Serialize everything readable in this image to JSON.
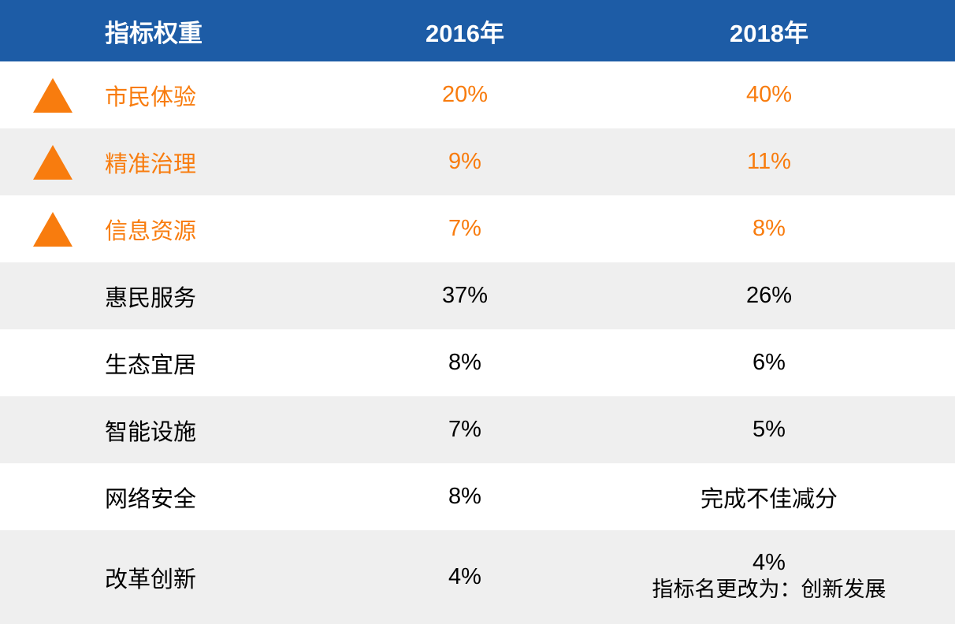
{
  "chart_data": {
    "type": "table",
    "title": "指标权重",
    "columns": [
      "指标权重",
      "2016年",
      "2018年"
    ],
    "categories": [
      "市民体验",
      "精准治理",
      "信息资源",
      "惠民服务",
      "生态宜居",
      "智能设施",
      "网络安全",
      "改革创新"
    ],
    "series": [
      {
        "name": "2016年",
        "values": [
          "20%",
          "9%",
          "7%",
          "37%",
          "8%",
          "7%",
          "8%",
          "4%"
        ]
      },
      {
        "name": "2018年",
        "values": [
          "40%",
          "11%",
          "8%",
          "26%",
          "6%",
          "5%",
          "完成不佳减分",
          "4% 指标名更改为：创新发展"
        ]
      }
    ],
    "annotations": [
      "前三行带橙色上升三角标记，表示权重上升的指标"
    ]
  },
  "table": {
    "header": {
      "name": "指标权重",
      "y2016": "2016年",
      "y2018": "2018年"
    },
    "rows": [
      {
        "name": "市民体验",
        "v2016": "20%",
        "v2018": "40%",
        "highlight": true
      },
      {
        "name": "精准治理",
        "v2016": "9%",
        "v2018": "11%",
        "highlight": true
      },
      {
        "name": "信息资源",
        "v2016": "7%",
        "v2018": "8%",
        "highlight": true
      },
      {
        "name": "惠民服务",
        "v2016": "37%",
        "v2018": "26%",
        "highlight": false
      },
      {
        "name": "生态宜居",
        "v2016": "8%",
        "v2018": "6%",
        "highlight": false
      },
      {
        "name": "智能设施",
        "v2016": "7%",
        "v2018": "5%",
        "highlight": false
      },
      {
        "name": "网络安全",
        "v2016": "8%",
        "v2018": "完成不佳减分",
        "highlight": false
      },
      {
        "name": "改革创新",
        "v2016": "4%",
        "v2018": "4%",
        "v2018_note": "指标名更改为：创新发展",
        "highlight": false
      }
    ]
  },
  "colors": {
    "header_bg": "#1D5CA6",
    "header_text": "#FFFFFF",
    "highlight_orange": "#F87C0E",
    "row_alt_bg": "#EFEFEF",
    "row_bg": "#FFFFFF",
    "body_text": "#000000"
  }
}
